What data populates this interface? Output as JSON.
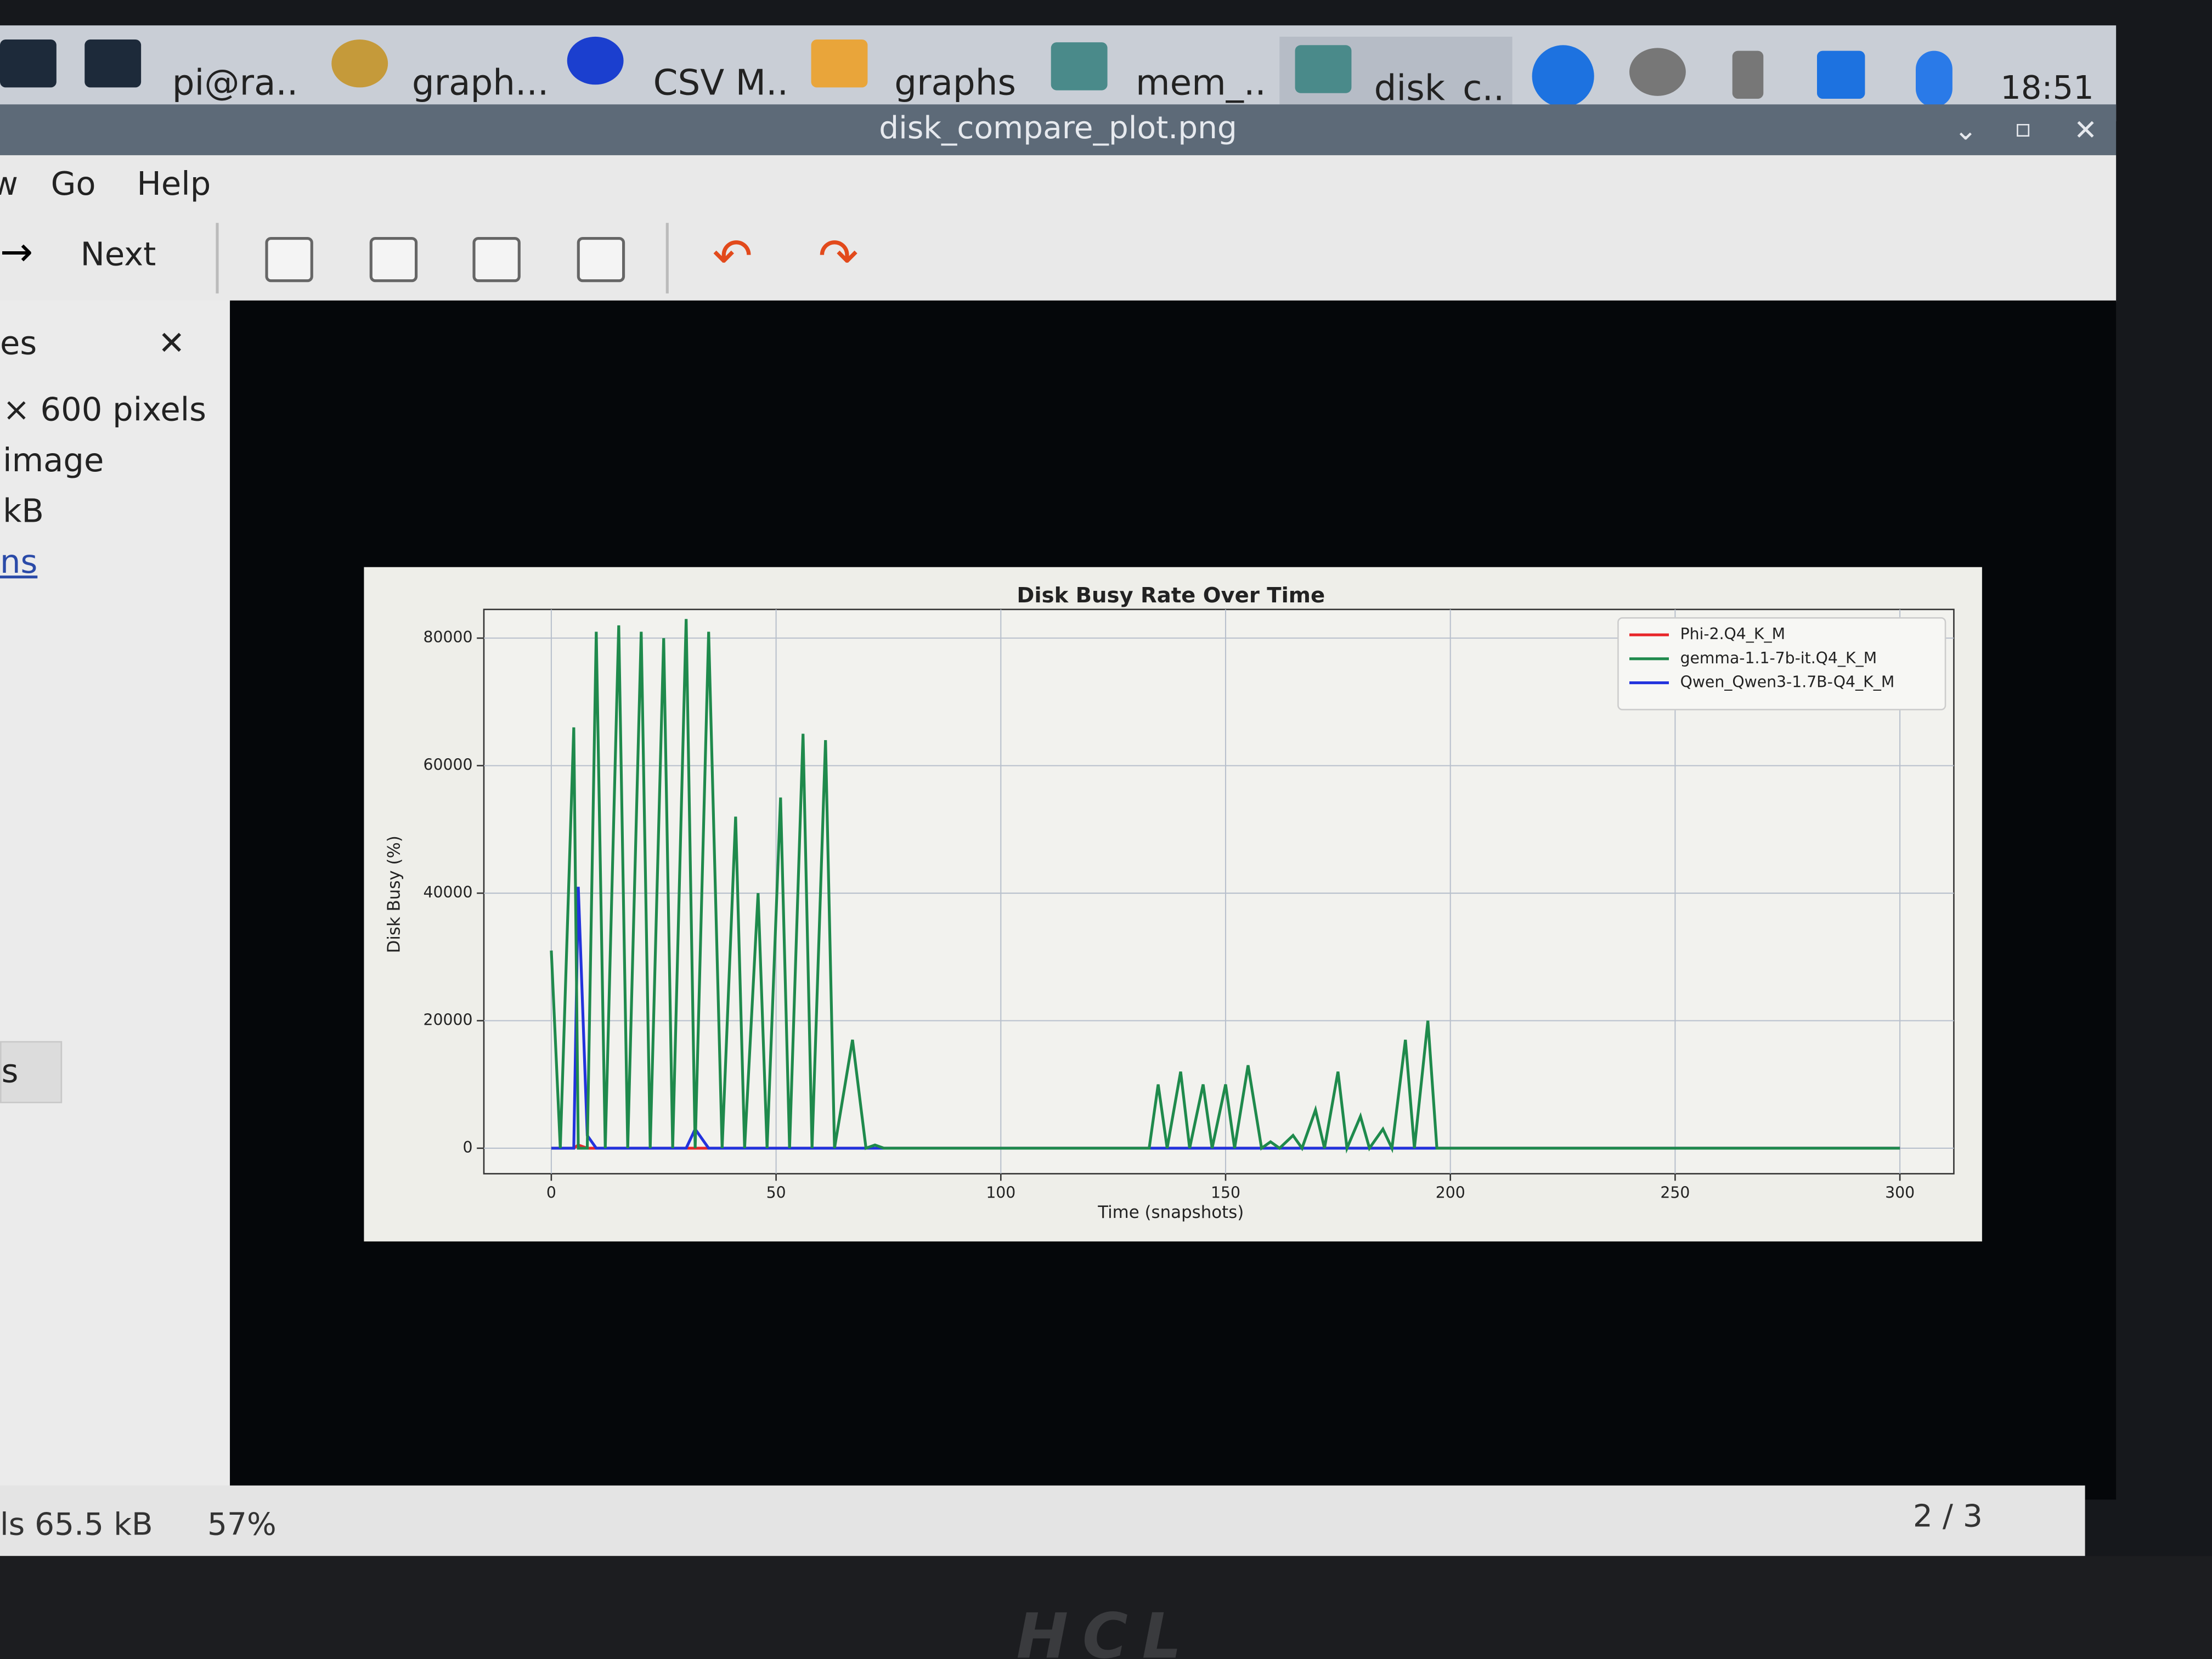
{
  "taskbar": {
    "items": [
      "pi@ra..",
      "graph...",
      "CSV M..",
      "graphs",
      "mem_..",
      "disk_c.."
    ],
    "clock": "18:51"
  },
  "window": {
    "title": "disk_compare_plot.png",
    "menu": [
      "w",
      "Go",
      "Help"
    ],
    "next": "Next"
  },
  "sidebar": {
    "heading": "es",
    "lines": [
      "× 600 pixels",
      "image",
      "kB",
      "ns"
    ],
    "button": "s"
  },
  "status": {
    "size": "ls 65.5 kB",
    "zoom": "57%",
    "index": "2 / 3"
  },
  "monitor": {
    "brand": "HCL"
  },
  "chart_data": {
    "type": "line",
    "title": "Disk Busy Rate Over Time",
    "x_label": "Time (snapshots)",
    "y_label": "Disk Busy (%)",
    "x": [
      0,
      2,
      5,
      6,
      8,
      10,
      12,
      15,
      17,
      20,
      22,
      25,
      27,
      30,
      32,
      35,
      38,
      41,
      43,
      46,
      48,
      51,
      53,
      56,
      58,
      61,
      63,
      67,
      70,
      72,
      74,
      133,
      135,
      137,
      140,
      142,
      145,
      147,
      150,
      152,
      155,
      158,
      160,
      162,
      165,
      167,
      170,
      172,
      175,
      177,
      180,
      182,
      185,
      187,
      190,
      192,
      195,
      197,
      300
    ],
    "series": [
      {
        "name": "Phi-2.Q4_K_M",
        "color": "#e8272a",
        "values": [
          0,
          0,
          0,
          500,
          0,
          0,
          0,
          0,
          0,
          0,
          0,
          0,
          0,
          0,
          0,
          0,
          0,
          0,
          0,
          0,
          0,
          0,
          0,
          0,
          0,
          0,
          0,
          0,
          0,
          0,
          0,
          0,
          0,
          0,
          0,
          0,
          0,
          0,
          0,
          0,
          0,
          0,
          0,
          0,
          0,
          0,
          0,
          0,
          0,
          0,
          0,
          0,
          0,
          0,
          0,
          0,
          0,
          0,
          0
        ]
      },
      {
        "name": "gemma-1.1-7b-it.Q4_K_M",
        "color": "#1f8a4c",
        "values": [
          31000,
          0,
          66000,
          0,
          0,
          81000,
          0,
          82000,
          0,
          81000,
          0,
          80000,
          0,
          83000,
          0,
          81000,
          0,
          52000,
          0,
          40000,
          0,
          55000,
          0,
          65000,
          0,
          64000,
          0,
          17000,
          0,
          500,
          0,
          0,
          10000,
          0,
          12000,
          0,
          10000,
          0,
          10000,
          0,
          13000,
          0,
          1000,
          0,
          2000,
          0,
          6000,
          0,
          12000,
          0,
          5000,
          0,
          3000,
          0,
          17000,
          0,
          20000,
          0,
          0
        ]
      },
      {
        "name": "Qwen_Qwen3-1.7B-Q4_K_M",
        "color": "#2233dd",
        "values": [
          0,
          0,
          0,
          41000,
          2000,
          0,
          0,
          0,
          0,
          0,
          0,
          0,
          0,
          0,
          3000,
          0,
          0,
          0,
          0,
          0,
          0,
          0,
          0,
          0,
          0,
          0,
          0,
          0,
          0,
          0,
          0,
          0,
          0,
          0,
          0,
          0,
          0,
          0,
          0,
          0,
          0,
          0,
          0,
          0,
          0,
          0,
          0,
          0,
          0,
          0,
          0,
          0,
          0,
          0,
          0,
          0,
          0,
          0,
          0
        ]
      }
    ],
    "xlim": [
      -15,
      312
    ],
    "xticks": [
      0,
      50,
      100,
      150,
      200,
      250,
      300
    ],
    "ylim": [
      -4000,
      84500
    ],
    "yticks": [
      0,
      20000,
      40000,
      60000,
      80000
    ],
    "grid": true,
    "legend": "upper right"
  }
}
